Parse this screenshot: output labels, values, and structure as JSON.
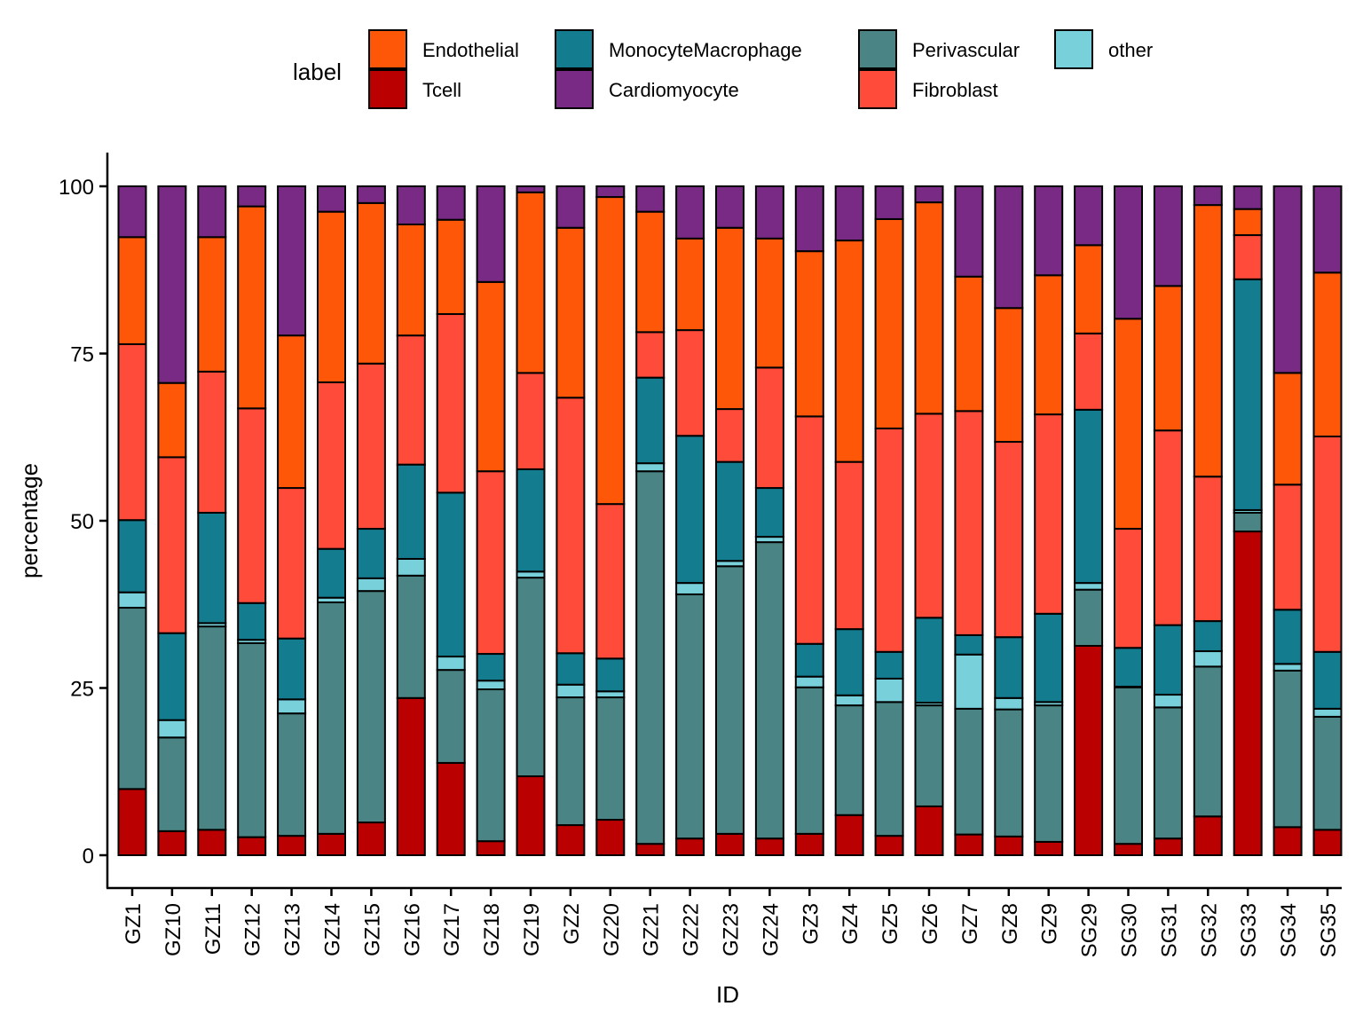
{
  "chart_data": {
    "type": "bar",
    "stacked": true,
    "title": "",
    "xlabel": "ID",
    "ylabel": "percentage",
    "ylim": [
      0,
      100
    ],
    "yticks": [
      0,
      25,
      50,
      75,
      100
    ],
    "grid": false,
    "legend": {
      "title": "label",
      "placement": "top",
      "entries": [
        {
          "name": "Endothelial",
          "color": "#FF5708"
        },
        {
          "name": "Tcell",
          "color": "#BA0000"
        },
        {
          "name": "MonocyteMacrophage",
          "color": "#137C8F"
        },
        {
          "name": "Cardiomyocyte",
          "color": "#782A85"
        },
        {
          "name": "Perivascular",
          "color": "#4A8484"
        },
        {
          "name": "Fibroblast",
          "color": "#FF4B3A"
        },
        {
          "name": "other",
          "color": "#77D0DA"
        }
      ]
    },
    "stack_order_bottom_to_top": [
      "Tcell",
      "Perivascular",
      "other",
      "MonocyteMacrophage",
      "Fibroblast",
      "Endothelial",
      "Cardiomyocyte"
    ],
    "categories": [
      "GZ1",
      "GZ10",
      "GZ11",
      "GZ12",
      "GZ13",
      "GZ14",
      "GZ15",
      "GZ16",
      "GZ17",
      "GZ18",
      "GZ19",
      "GZ2",
      "GZ20",
      "GZ21",
      "GZ22",
      "GZ23",
      "GZ24",
      "GZ3",
      "GZ4",
      "GZ5",
      "GZ6",
      "GZ7",
      "GZ8",
      "GZ9",
      "SG29",
      "SG30",
      "SG31",
      "SG32",
      "SG33",
      "SG34",
      "SG35"
    ],
    "series": [
      {
        "name": "Tcell",
        "color": "#BA0000",
        "values": [
          9.9,
          3.6,
          3.8,
          2.7,
          2.9,
          3.2,
          4.9,
          23.5,
          13.8,
          2.1,
          11.8,
          4.5,
          5.3,
          1.7,
          2.5,
          3.2,
          2.5,
          3.2,
          6.0,
          2.9,
          7.3,
          3.1,
          2.8,
          2.0,
          31.3,
          1.7,
          2.5,
          5.8,
          48.4,
          4.2,
          3.8
        ]
      },
      {
        "name": "Perivascular",
        "color": "#4A8484",
        "values": [
          27.1,
          14.0,
          30.4,
          29.0,
          18.3,
          34.6,
          34.6,
          18.3,
          13.9,
          22.7,
          29.7,
          19.1,
          18.3,
          55.7,
          36.5,
          40.0,
          44.3,
          21.9,
          16.4,
          20.0,
          15.1,
          18.8,
          19.0,
          20.4,
          8.4,
          23.4,
          19.6,
          22.4,
          2.8,
          23.4,
          16.9
        ]
      },
      {
        "name": "other",
        "color": "#77D0DA",
        "values": [
          2.3,
          2.6,
          0.5,
          0.5,
          2.1,
          0.7,
          1.9,
          2.5,
          2.0,
          1.3,
          0.9,
          1.9,
          0.9,
          1.2,
          1.7,
          0.8,
          0.8,
          1.6,
          1.5,
          3.5,
          0.4,
          8.1,
          1.7,
          0.5,
          1.0,
          0.1,
          1.9,
          2.3,
          0.4,
          1.0,
          1.2
        ]
      },
      {
        "name": "MonocyteMacrophage",
        "color": "#137C8F",
        "values": [
          10.8,
          13.0,
          16.5,
          5.5,
          9.1,
          7.3,
          7.4,
          14.1,
          24.5,
          4.0,
          15.3,
          4.7,
          4.9,
          12.8,
          22.0,
          14.8,
          7.3,
          4.9,
          9.9,
          4.0,
          12.7,
          2.9,
          9.1,
          13.2,
          25.9,
          5.8,
          10.4,
          4.5,
          34.5,
          8.1,
          8.5
        ]
      },
      {
        "name": "Fibroblast",
        "color": "#FF4B3A",
        "values": [
          26.3,
          26.3,
          21.1,
          29.1,
          22.5,
          24.9,
          24.7,
          19.3,
          26.7,
          27.3,
          14.4,
          38.2,
          23.1,
          6.8,
          15.8,
          7.9,
          18.0,
          34.0,
          25.0,
          33.4,
          30.5,
          33.5,
          29.2,
          29.8,
          11.4,
          17.8,
          29.1,
          21.6,
          6.6,
          18.7,
          32.2
        ]
      },
      {
        "name": "Endothelial",
        "color": "#FF5708",
        "values": [
          16.0,
          11.1,
          20.1,
          30.2,
          22.8,
          25.5,
          24.0,
          16.6,
          14.1,
          28.3,
          27.0,
          25.4,
          45.9,
          18.0,
          13.7,
          27.1,
          19.3,
          24.7,
          33.1,
          31.3,
          31.6,
          20.1,
          20.0,
          20.8,
          13.2,
          31.4,
          21.6,
          40.6,
          3.9,
          16.7,
          24.5
        ]
      },
      {
        "name": "Cardiomyocyte",
        "color": "#782A85",
        "values": [
          7.6,
          29.4,
          7.6,
          3.0,
          22.3,
          3.8,
          2.5,
          5.7,
          5.0,
          14.3,
          0.9,
          6.2,
          1.6,
          3.8,
          7.8,
          6.2,
          7.8,
          9.7,
          8.1,
          4.9,
          2.4,
          13.5,
          18.2,
          13.3,
          8.8,
          19.8,
          14.9,
          2.8,
          3.4,
          27.9,
          12.9
        ]
      }
    ]
  }
}
